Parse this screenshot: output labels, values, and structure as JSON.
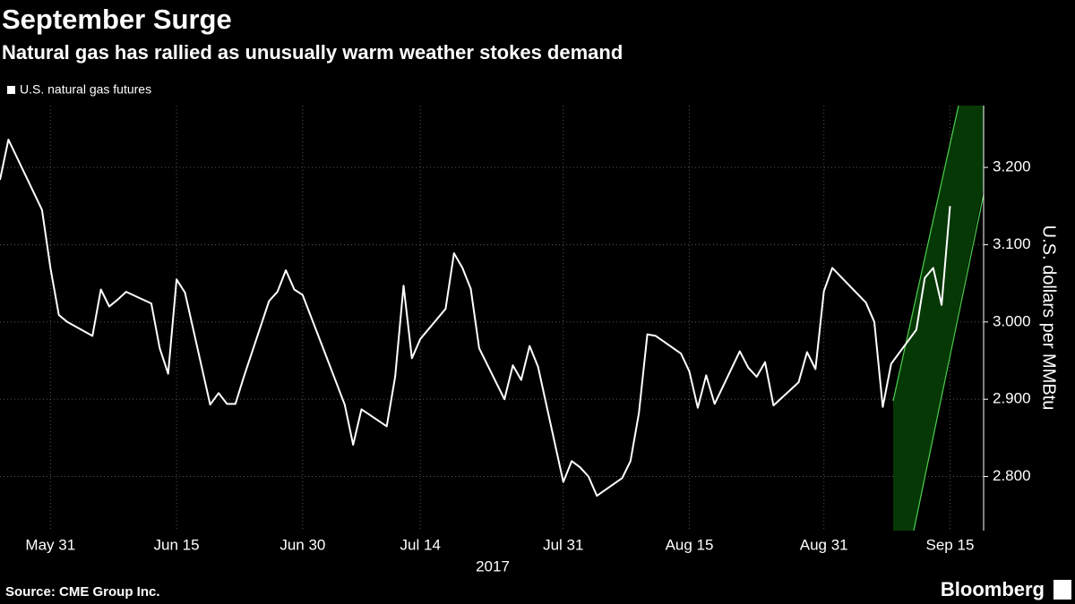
{
  "chart_data": {
    "type": "line",
    "title": "September Surge",
    "subtitle": "Natural gas has rallied as unusually warm weather stokes demand",
    "y_axis_label": "U.S. dollars per MMBtu",
    "x_axis_label": "2017",
    "source": "Source: CME Group Inc.",
    "brand": "Bloomberg",
    "x": [
      "2017-05-25",
      "2017-05-26",
      "2017-05-30",
      "2017-05-31",
      "2017-06-01",
      "2017-06-02",
      "2017-06-05",
      "2017-06-06",
      "2017-06-07",
      "2017-06-08",
      "2017-06-09",
      "2017-06-12",
      "2017-06-13",
      "2017-06-14",
      "2017-06-15",
      "2017-06-16",
      "2017-06-19",
      "2017-06-20",
      "2017-06-21",
      "2017-06-22",
      "2017-06-23",
      "2017-06-26",
      "2017-06-27",
      "2017-06-28",
      "2017-06-29",
      "2017-06-30",
      "2017-07-03",
      "2017-07-05",
      "2017-07-06",
      "2017-07-07",
      "2017-07-10",
      "2017-07-11",
      "2017-07-12",
      "2017-07-13",
      "2017-07-14",
      "2017-07-17",
      "2017-07-18",
      "2017-07-19",
      "2017-07-20",
      "2017-07-21",
      "2017-07-24",
      "2017-07-25",
      "2017-07-26",
      "2017-07-27",
      "2017-07-28",
      "2017-07-31",
      "2017-08-01",
      "2017-08-02",
      "2017-08-03",
      "2017-08-04",
      "2017-08-07",
      "2017-08-08",
      "2017-08-09",
      "2017-08-10",
      "2017-08-11",
      "2017-08-14",
      "2017-08-15",
      "2017-08-16",
      "2017-08-17",
      "2017-08-18",
      "2017-08-21",
      "2017-08-22",
      "2017-08-23",
      "2017-08-24",
      "2017-08-25",
      "2017-08-28",
      "2017-08-29",
      "2017-08-30",
      "2017-08-31",
      "2017-09-01",
      "2017-09-05",
      "2017-09-06",
      "2017-09-07",
      "2017-09-08",
      "2017-09-11",
      "2017-09-12",
      "2017-09-13",
      "2017-09-14",
      "2017-09-15"
    ],
    "series": [
      {
        "name": "U.S. natural gas futures",
        "color": "#ffffff",
        "values": [
          3.184,
          3.236,
          3.145,
          3.07,
          3.009,
          3.0,
          2.982,
          3.042,
          3.02,
          3.029,
          3.039,
          3.024,
          2.966,
          2.933,
          3.055,
          3.038,
          2.893,
          2.908,
          2.894,
          2.894,
          2.929,
          3.027,
          3.039,
          3.067,
          3.042,
          3.035,
          2.95,
          2.893,
          2.841,
          2.887,
          2.865,
          2.929,
          3.047,
          2.953,
          2.978,
          3.017,
          3.089,
          3.07,
          3.043,
          2.966,
          2.9,
          2.944,
          2.925,
          2.969,
          2.942,
          2.793,
          2.82,
          2.812,
          2.8,
          2.775,
          2.798,
          2.82,
          2.882,
          2.984,
          2.982,
          2.959,
          2.936,
          2.889,
          2.931,
          2.894,
          2.962,
          2.941,
          2.929,
          2.948,
          2.892,
          2.922,
          2.961,
          2.939,
          3.04,
          3.07,
          3.025,
          3.0,
          2.89,
          2.946,
          2.99,
          3.057,
          3.07,
          3.022,
          3.15
        ]
      }
    ],
    "xlim": [
      "2017-05-25",
      "2017-09-19"
    ],
    "xticks": [
      {
        "value": "2017-05-31",
        "label": "May 31"
      },
      {
        "value": "2017-06-15",
        "label": "Jun 15"
      },
      {
        "value": "2017-06-30",
        "label": "Jun 30"
      },
      {
        "value": "2017-07-14",
        "label": "Jul 14"
      },
      {
        "value": "2017-07-31",
        "label": "Jul 31"
      },
      {
        "value": "2017-08-15",
        "label": "Aug 15"
      },
      {
        "value": "2017-08-31",
        "label": "Aug 31"
      },
      {
        "value": "2017-09-15",
        "label": "Sep 15"
      }
    ],
    "ylim": [
      2.73,
      3.28
    ],
    "yticks": [
      {
        "value": 2.8,
        "label": "2.800"
      },
      {
        "value": 2.9,
        "label": "2.900"
      },
      {
        "value": 3.0,
        "label": "3.000"
      },
      {
        "value": 3.1,
        "label": "3.100"
      },
      {
        "value": 3.2,
        "label": "3.200"
      }
    ],
    "grid": true
  }
}
